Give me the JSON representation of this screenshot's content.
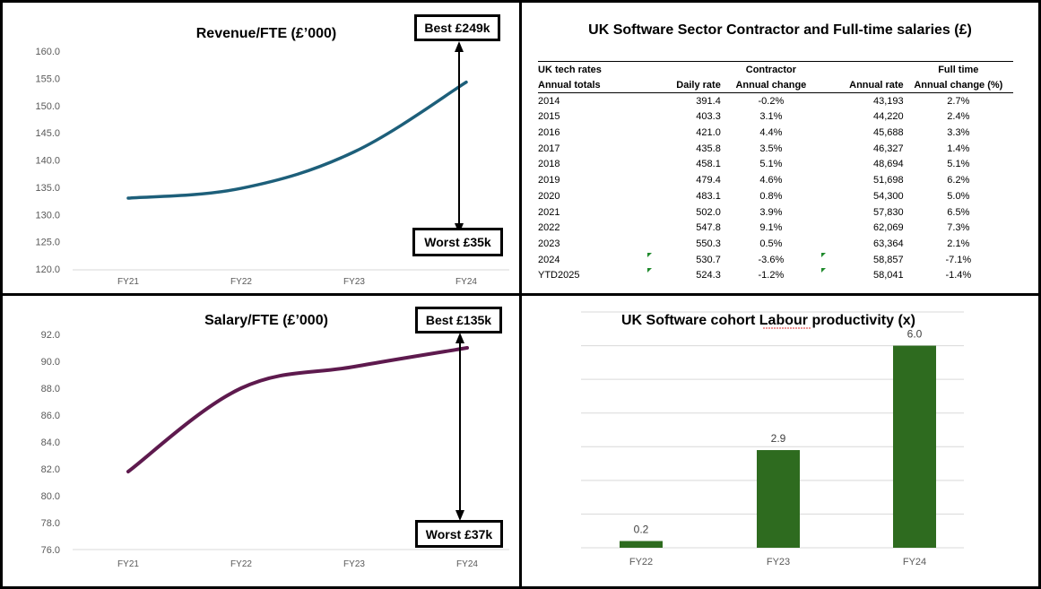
{
  "panels": {
    "revenue": {
      "callout_best": "Best £249k",
      "callout_worst": "Worst £35k"
    },
    "salary": {
      "callout_best": "Best £135k",
      "callout_worst": "Worst £37k"
    },
    "table": {
      "title": "UK Software Sector Contractor and Full-time salaries (£)",
      "group_header_label": "UK tech rates",
      "group_contractor": "Contractor",
      "group_fulltime": "Full time",
      "col_year": "Annual totals",
      "col_daily_rate": "Daily rate",
      "col_contractor_change": "Annual change",
      "col_annual_rate": "Annual rate",
      "col_fulltime_change": "Annual change (%)",
      "rows": [
        {
          "year": "2014",
          "daily": "391.4",
          "cchg": "-0.2%",
          "annual": "43,193",
          "fchg": "2.7%"
        },
        {
          "year": "2015",
          "daily": "403.3",
          "cchg": "3.1%",
          "annual": "44,220",
          "fchg": "2.4%"
        },
        {
          "year": "2016",
          "daily": "421.0",
          "cchg": "4.4%",
          "annual": "45,688",
          "fchg": "3.3%"
        },
        {
          "year": "2017",
          "daily": "435.8",
          "cchg": "3.5%",
          "annual": "46,327",
          "fchg": "1.4%"
        },
        {
          "year": "2018",
          "daily": "458.1",
          "cchg": "5.1%",
          "annual": "48,694",
          "fchg": "5.1%"
        },
        {
          "year": "2019",
          "daily": "479.4",
          "cchg": "4.6%",
          "annual": "51,698",
          "fchg": "6.2%"
        },
        {
          "year": "2020",
          "daily": "483.1",
          "cchg": "0.8%",
          "annual": "54,300",
          "fchg": "5.0%"
        },
        {
          "year": "2021",
          "daily": "502.0",
          "cchg": "3.9%",
          "annual": "57,830",
          "fchg": "6.5%"
        },
        {
          "year": "2022",
          "daily": "547.8",
          "cchg": "9.1%",
          "annual": "62,069",
          "fchg": "7.3%"
        },
        {
          "year": "2023",
          "daily": "550.3",
          "cchg": "0.5%",
          "annual": "63,364",
          "fchg": "2.1%"
        },
        {
          "year": "2024",
          "daily": "530.7",
          "cchg": "-3.6%",
          "annual": "58,857",
          "fchg": "-7.1%",
          "flag": true
        },
        {
          "year": "YTD2025",
          "daily": "524.3",
          "cchg": "-1.2%",
          "annual": "58,041",
          "fchg": "-1.4%",
          "flag": true
        }
      ]
    }
  },
  "colors": {
    "revenue_line": "#1d5f7a",
    "salary_line": "#5e1a4e",
    "bar_fill": "#2e6b1f",
    "grid": "#d9d9d9",
    "axis_text": "#595959",
    "flag": "#1f8a2c"
  },
  "chart_data": [
    {
      "id": "revenue",
      "type": "line",
      "title": "Revenue/FTE (£’000)",
      "categories": [
        "FY21",
        "FY22",
        "FY23",
        "FY24"
      ],
      "series": [
        {
          "name": "Revenue/FTE",
          "values": [
            133.0,
            134.8,
            141.5,
            154.3
          ]
        }
      ],
      "ylim": [
        120,
        160
      ],
      "yticks": [
        "120.0",
        "125.0",
        "130.0",
        "135.0",
        "140.0",
        "145.0",
        "150.0",
        "155.0",
        "160.0"
      ],
      "grid": false
    },
    {
      "id": "salary",
      "type": "line",
      "title": "Salary/FTE (£’000)",
      "categories": [
        "FY21",
        "FY22",
        "FY23",
        "FY24"
      ],
      "series": [
        {
          "name": "Salary/FTE",
          "values": [
            81.8,
            88.0,
            89.6,
            91.0
          ]
        }
      ],
      "ylim": [
        76,
        92
      ],
      "yticks": [
        "76.0",
        "78.0",
        "80.0",
        "82.0",
        "84.0",
        "86.0",
        "88.0",
        "90.0",
        "92.0"
      ],
      "grid": false
    },
    {
      "id": "productivity",
      "type": "bar",
      "title": "UK Software cohort Labour productivity (x)",
      "categories": [
        "FY22",
        "FY23",
        "FY24"
      ],
      "values": [
        0.2,
        2.9,
        6.0
      ],
      "data_labels": [
        "0.2",
        "2.9",
        "6.0"
      ],
      "ylim": [
        0,
        7
      ],
      "grid": true
    }
  ]
}
